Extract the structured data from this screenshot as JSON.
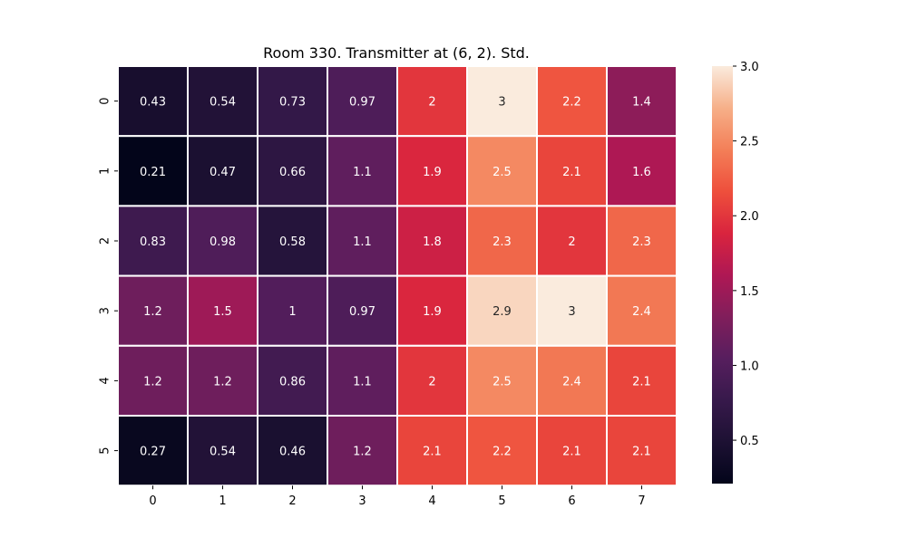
{
  "chart_data": {
    "type": "heatmap",
    "title": "Room 330. Transmitter at (6, 2). Std.",
    "xlabel": "",
    "ylabel": "",
    "x_categories": [
      "0",
      "1",
      "2",
      "3",
      "4",
      "5",
      "6",
      "7"
    ],
    "y_categories": [
      "0",
      "1",
      "2",
      "3",
      "4",
      "5"
    ],
    "values": [
      [
        0.43,
        0.54,
        0.73,
        0.97,
        2.0,
        3.0,
        2.2,
        1.4
      ],
      [
        0.21,
        0.47,
        0.66,
        1.1,
        1.9,
        2.5,
        2.1,
        1.6
      ],
      [
        0.83,
        0.98,
        0.58,
        1.1,
        1.8,
        2.3,
        2.0,
        2.3
      ],
      [
        1.2,
        1.5,
        1.0,
        0.97,
        1.9,
        2.9,
        3.0,
        2.4
      ],
      [
        1.2,
        1.2,
        0.86,
        1.1,
        2.0,
        2.5,
        2.4,
        2.1
      ],
      [
        0.27,
        0.54,
        0.46,
        1.2,
        2.1,
        2.2,
        2.1,
        2.1
      ]
    ],
    "labels": [
      [
        "0.43",
        "0.54",
        "0.73",
        "0.97",
        "2",
        "3",
        "2.2",
        "1.4"
      ],
      [
        "0.21",
        "0.47",
        "0.66",
        "1.1",
        "1.9",
        "2.5",
        "2.1",
        "1.6"
      ],
      [
        "0.83",
        "0.98",
        "0.58",
        "1.1",
        "1.8",
        "2.3",
        "2",
        "2.3"
      ],
      [
        "1.2",
        "1.5",
        "1",
        "0.97",
        "1.9",
        "2.9",
        "3",
        "2.4"
      ],
      [
        "1.2",
        "1.2",
        "0.86",
        "1.1",
        "2",
        "2.5",
        "2.4",
        "2.1"
      ],
      [
        "0.27",
        "0.54",
        "0.46",
        "1.2",
        "2.1",
        "2.2",
        "2.1",
        "2.1"
      ]
    ],
    "colorbar": {
      "vmin": 0.21,
      "vmax": 3.0,
      "ticks": [
        0.5,
        1.0,
        1.5,
        2.0,
        2.5,
        3.0
      ],
      "tick_labels": [
        "0.5",
        "1.0",
        "1.5",
        "2.0",
        "2.5",
        "3.0"
      ]
    },
    "colormap": "rocket",
    "grid": true,
    "cell_border_color": "#ffffff",
    "dark_text_color": "#262626",
    "light_text_color": "#ffffff"
  }
}
